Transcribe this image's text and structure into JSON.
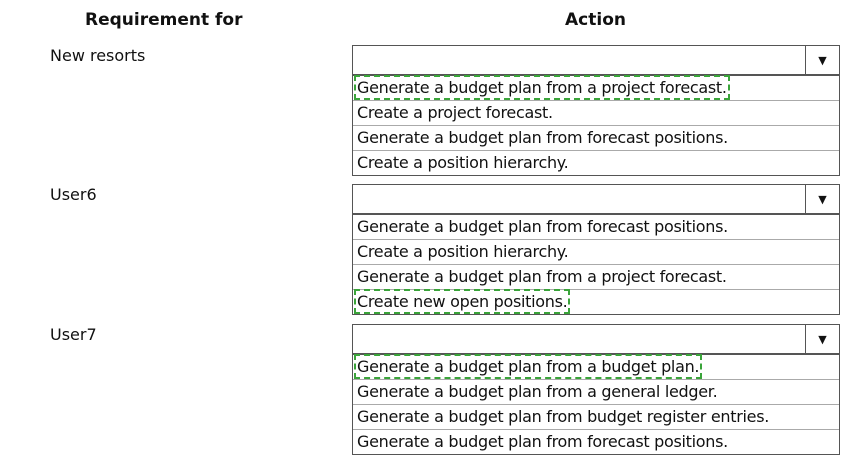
{
  "headers": {
    "requirement": "Requirement for",
    "action": "Action"
  },
  "accent_color": "#3aa43a",
  "rows": [
    {
      "requirement": "New resorts",
      "selected": "",
      "options": [
        "Generate a budget plan from a project forecast.",
        "Create a project forecast.",
        "Generate a budget plan from forecast positions.",
        "Create a position hierarchy."
      ],
      "correct_index": 0
    },
    {
      "requirement": "User6",
      "selected": "",
      "options": [
        "Generate a budget plan from forecast positions.",
        "Create a position hierarchy.",
        "Generate a budget plan from a project forecast.",
        "Create new open positions."
      ],
      "correct_index": 3
    },
    {
      "requirement": "User7",
      "selected": "",
      "options": [
        "Generate a budget plan from a budget plan.",
        "Generate a budget plan from a general ledger.",
        "Generate a budget plan from budget register entries.",
        "Generate a budget plan from forecast positions."
      ],
      "correct_index": 0
    }
  ],
  "dropdown_icon": "triangle-down"
}
